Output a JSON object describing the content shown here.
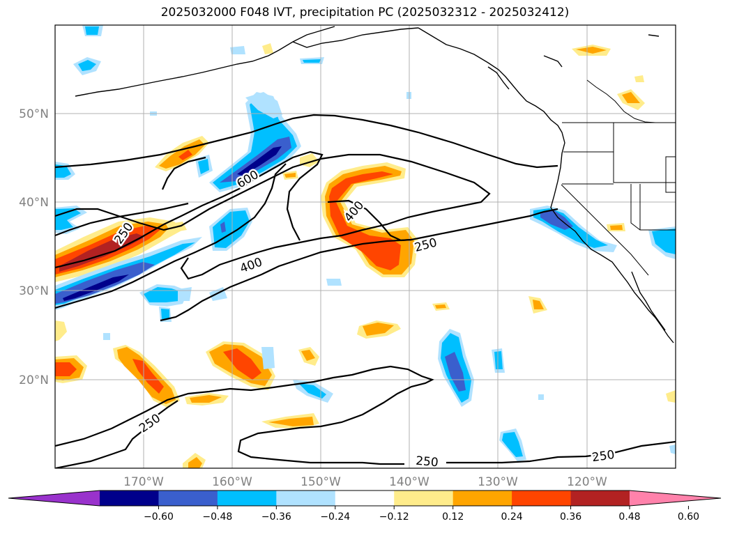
{
  "title": "2025032000 F048 IVT, precipitation PC (2025032312 - 2025032412)",
  "lat_labels": [
    "50°N",
    "40°N",
    "30°N",
    "20°N"
  ],
  "lon_labels": [
    "170°W",
    "160°W",
    "150°W",
    "140°W",
    "130°W",
    "120°W"
  ],
  "contour_labels": [
    "600",
    "250",
    "400",
    "400",
    "250",
    "250",
    "250",
    "250"
  ],
  "colorbar": {
    "ticks": [
      "−0.60",
      "−0.48",
      "−0.36",
      "−0.24",
      "−0.12",
      "0.12",
      "0.24",
      "0.36",
      "0.48",
      "0.60"
    ],
    "colors": [
      "#9932cc",
      "#00008b",
      "#3a5fcd",
      "#00bfff",
      "#b0e2ff",
      "#ffffff",
      "#ffec8b",
      "#ffa500",
      "#ff4500",
      "#b22222",
      "#ff82ab"
    ]
  }
}
